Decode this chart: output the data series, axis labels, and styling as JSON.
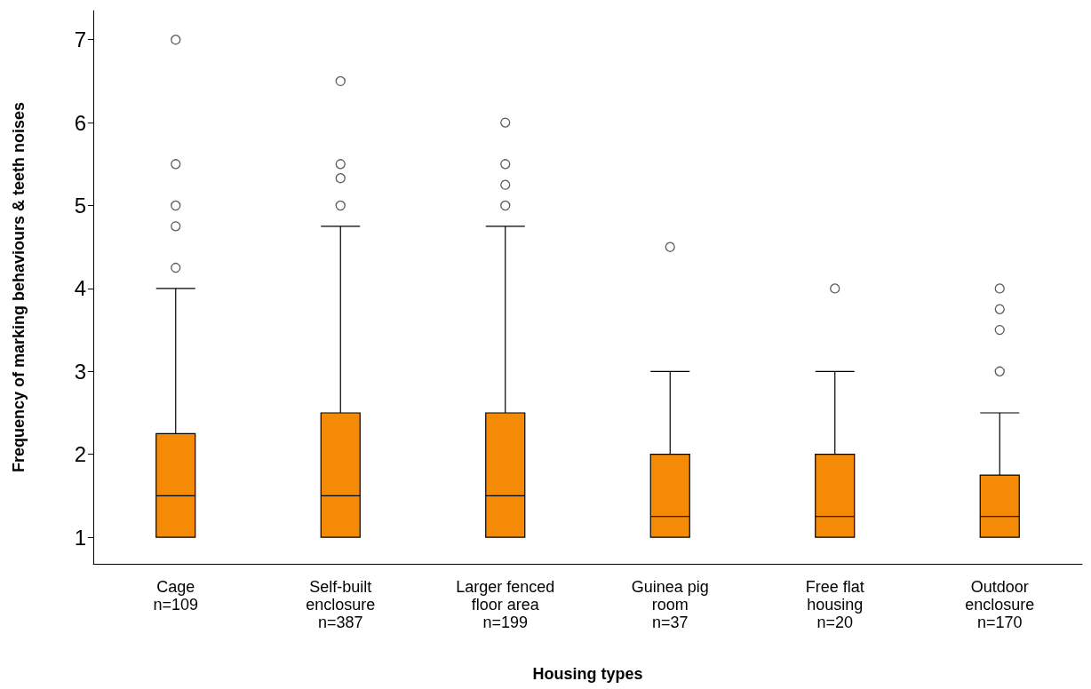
{
  "chart_data": {
    "type": "box",
    "xlabel": "Housing types",
    "ylabel": "Frequency of marking behaviours & teeth noises",
    "categories": [
      "Cage\nn=109",
      "Self-built\nenclosure\nn=387",
      "Larger fenced\nfloor area\nn=199",
      "Guinea pig\nroom\nn=37",
      "Free flat\nhousing\nn=20",
      "Outdoor\nenclosure\nn=170"
    ],
    "color": "#f58a07",
    "boxes": [
      {
        "low": 1,
        "q1": 1,
        "median": 1.5,
        "q3": 2.25,
        "high": 4,
        "outliers": [
          4.25,
          4.75,
          5,
          5.5,
          7
        ]
      },
      {
        "low": 1,
        "q1": 1,
        "median": 1.5,
        "q3": 2.5,
        "high": 4.75,
        "outliers": [
          5,
          5.33,
          5.5,
          6.5
        ]
      },
      {
        "low": 1,
        "q1": 1,
        "median": 1.5,
        "q3": 2.5,
        "high": 4.75,
        "outliers": [
          5,
          5.25,
          5.5,
          6
        ]
      },
      {
        "low": 1,
        "q1": 1,
        "median": 1.25,
        "q3": 2,
        "high": 3,
        "outliers": [
          4.5
        ]
      },
      {
        "low": 1,
        "q1": 1,
        "median": 1.25,
        "q3": 2,
        "high": 3,
        "outliers": [
          4
        ]
      },
      {
        "low": 1,
        "q1": 1,
        "median": 1.25,
        "q3": 1.75,
        "high": 2.5,
        "outliers": [
          3,
          3.5,
          3.75,
          4
        ]
      }
    ],
    "ylim": [
      0.68,
      7.35
    ],
    "yticks": [
      1,
      2,
      3,
      4,
      5,
      6,
      7
    ],
    "grid": false,
    "marker": "circle"
  }
}
